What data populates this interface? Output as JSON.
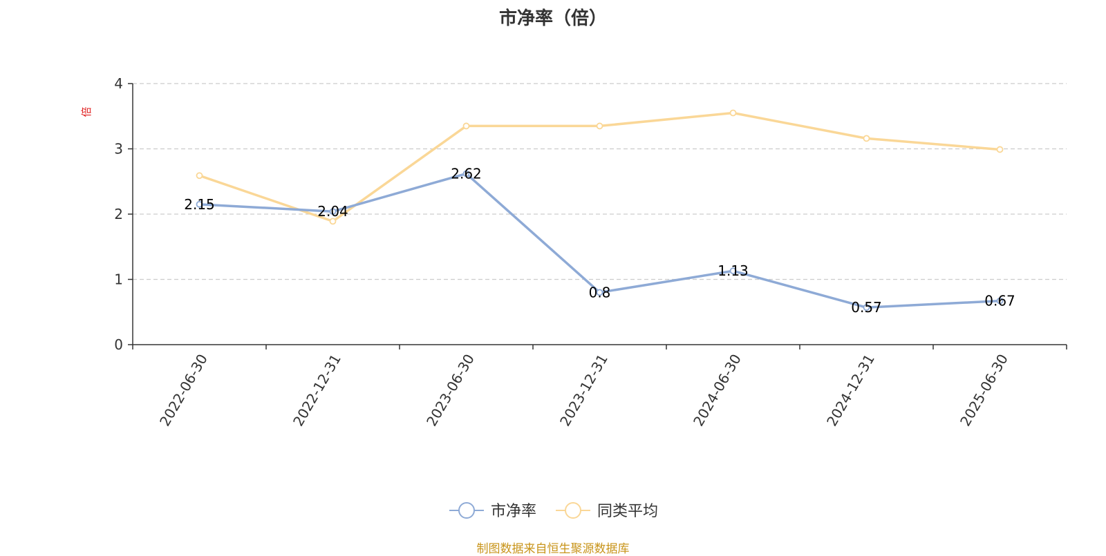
{
  "chart_data": {
    "type": "line",
    "title": "市净率（倍）",
    "ylabel": "倍",
    "ylim": [
      0,
      4
    ],
    "yticks": [
      0,
      1,
      2,
      3,
      4
    ],
    "categories": [
      "2022-06-30",
      "2022-12-31",
      "2023-06-30",
      "2023-12-31",
      "2024-06-30",
      "2024-12-31",
      "2025-06-30"
    ],
    "series": [
      {
        "name": "市净率",
        "values": [
          2.15,
          2.04,
          2.62,
          0.8,
          1.13,
          0.57,
          0.67
        ],
        "color": "#8eaad6",
        "labels": [
          "2.15",
          "2.04",
          "2.62",
          "0.8",
          "1.13",
          "0.57",
          "0.67"
        ]
      },
      {
        "name": "同类平均",
        "values": [
          2.59,
          1.89,
          3.35,
          3.35,
          3.55,
          3.16,
          2.99
        ],
        "color": "#fad797"
      }
    ],
    "grid": true,
    "legend_position": "bottom-center"
  },
  "source": "制图数据来自恒生聚源数据库"
}
